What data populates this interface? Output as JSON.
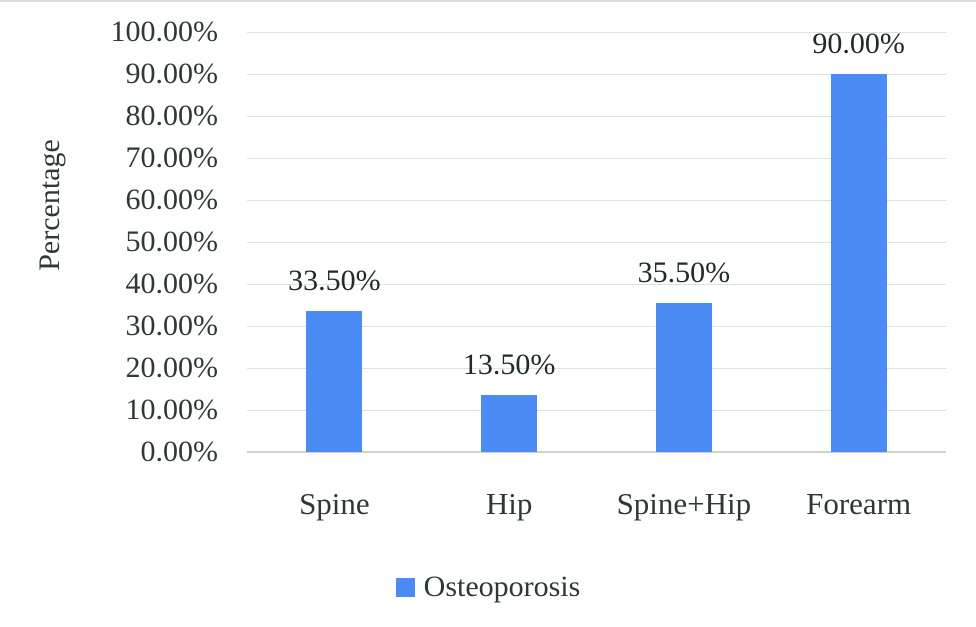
{
  "chart_data": {
    "type": "bar",
    "title": "",
    "xlabel": "",
    "ylabel": "Percentage",
    "categories": [
      "Spine",
      "Hip",
      "Spine+Hip",
      "Forearm"
    ],
    "series": [
      {
        "name": "Osteoporosis",
        "values": [
          33.5,
          13.5,
          35.5,
          90.0
        ],
        "value_labels": [
          "33.50%",
          "13.50%",
          "35.50%",
          "90.00%"
        ]
      }
    ],
    "ylim": [
      0,
      100
    ],
    "ytick_step": 10,
    "ytick_labels": [
      "0.00%",
      "10.00%",
      "20.00%",
      "30.00%",
      "40.00%",
      "50.00%",
      "60.00%",
      "70.00%",
      "80.00%",
      "90.00%",
      "100.00%"
    ],
    "grid": true,
    "legend_position": "bottom"
  },
  "colors": {
    "bar": "#4a8cf4",
    "gridline": "#dde3e3",
    "axis_line": "#ccd3d3",
    "text": "#2e3838",
    "label_text": "#202a2a",
    "top_border": "#d9dfdf",
    "background": "#ffffff"
  }
}
